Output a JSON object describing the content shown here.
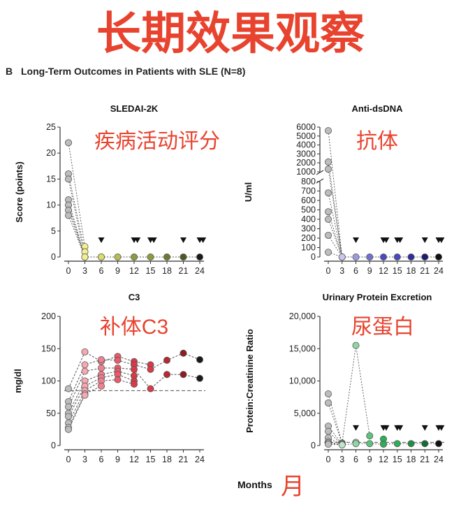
{
  "headline": "长期效果观察",
  "subtitle": "Long-Term Outcomes in Patients with SLE (N=8)",
  "panel_letter": "B",
  "xlabel": "Months",
  "xlabel_cn": "月",
  "chart_data": [
    {
      "type": "scatter",
      "title": "SLEDAI-2K",
      "annotation": "疾病活动评分",
      "ylabel": "Score (points)",
      "ylim": [
        0,
        25
      ],
      "yticks": [
        0,
        5,
        10,
        15,
        20,
        25
      ],
      "xticks": [
        0,
        3,
        6,
        9,
        12,
        15,
        18,
        21,
        24
      ],
      "triangle_markers_x": [
        6,
        12,
        12.6,
        15,
        15.6,
        21,
        24,
        24.6
      ],
      "palette": [
        "#bdbdbd",
        "#f4f08f",
        "#dcdc6a",
        "#b8bd4e",
        "#8f9a3a",
        "#6b7a2c",
        "#4a5a22",
        "#1a1a1a"
      ],
      "points": [
        {
          "x": 0,
          "values": [
            22,
            16,
            15,
            11,
            10,
            10,
            9,
            8
          ]
        },
        {
          "x": 3,
          "values": [
            2,
            1,
            0,
            0
          ]
        },
        {
          "x": 6,
          "values": [
            0,
            0
          ]
        },
        {
          "x": 9,
          "values": [
            0
          ]
        },
        {
          "x": 12,
          "values": [
            0
          ]
        },
        {
          "x": 15,
          "values": [
            0
          ]
        },
        {
          "x": 18,
          "values": [
            0
          ]
        },
        {
          "x": 21,
          "values": [
            0
          ]
        },
        {
          "x": 24,
          "values": [
            0
          ]
        }
      ]
    },
    {
      "type": "scatter",
      "title": "Anti-dsDNA",
      "annotation": "抗体",
      "ylabel": "U/ml",
      "axis_break": true,
      "yticks_upper": [
        1000,
        2000,
        3000,
        4000,
        5000,
        6000
      ],
      "yticks_lower": [
        0,
        100,
        200,
        300,
        400,
        500,
        600,
        700,
        800
      ],
      "xticks": [
        0,
        3,
        6,
        9,
        12,
        15,
        18,
        21,
        24
      ],
      "triangle_markers_x": [
        6,
        12,
        12.6,
        15,
        15.6,
        21,
        24,
        24.6
      ],
      "palette": [
        "#bdbdbd",
        "#c8c8ee",
        "#9a9ae0",
        "#6f6fcf",
        "#4a4abf",
        "#2e2ea0",
        "#1e1e70",
        "#111111"
      ],
      "points": [
        {
          "x": 0,
          "values": [
            5600,
            2100,
            1300,
            680,
            480,
            400,
            230,
            50
          ]
        },
        {
          "x": 3,
          "values": [
            0,
            0,
            0
          ]
        },
        {
          "x": 6,
          "values": [
            0
          ]
        },
        {
          "x": 9,
          "values": [
            0
          ]
        },
        {
          "x": 12,
          "values": [
            0
          ]
        },
        {
          "x": 15,
          "values": [
            0
          ]
        },
        {
          "x": 18,
          "values": [
            0
          ]
        },
        {
          "x": 21,
          "values": [
            0
          ]
        },
        {
          "x": 24,
          "values": [
            0
          ]
        }
      ]
    },
    {
      "type": "line",
      "title": "C3",
      "annotation": "补体C3",
      "ylabel": "mg/dl",
      "ylim": [
        0,
        200
      ],
      "yticks": [
        0,
        50,
        100,
        150,
        200
      ],
      "xticks": [
        0,
        3,
        6,
        9,
        12,
        15,
        18,
        21,
        24
      ],
      "reference_line": 85,
      "palette": [
        "#bdbdbd",
        "#f7a8b2",
        "#f08090",
        "#ea5a6a",
        "#d83a48",
        "#b82830",
        "#8e1c22",
        "#1a1a1a"
      ],
      "series": [
        {
          "name": "",
          "x": [
            0,
            3,
            6,
            9,
            12,
            15
          ],
          "values": [
            88,
            145,
            130,
            138,
            130,
            125
          ]
        },
        {
          "name": "",
          "x": [
            0,
            3,
            6,
            9,
            12,
            15,
            18,
            21,
            24
          ],
          "values": [
            68,
            125,
            133,
            132,
            125,
            118,
            132,
            143,
            133
          ]
        },
        {
          "name": "",
          "x": [
            0,
            3,
            6,
            9,
            12,
            15,
            18,
            21,
            24
          ],
          "values": [
            60,
            115,
            120,
            120,
            118,
            88,
            110,
            110,
            104
          ]
        },
        {
          "name": "",
          "x": [
            0,
            3,
            6,
            9,
            12
          ],
          "values": [
            50,
            100,
            110,
            115,
            108
          ]
        },
        {
          "name": "",
          "x": [
            0,
            3,
            6,
            9,
            12
          ],
          "values": [
            45,
            92,
            105,
            110,
            100
          ]
        },
        {
          "name": "",
          "x": [
            0,
            3,
            6,
            9,
            12
          ],
          "values": [
            35,
            85,
            100,
            102,
            95
          ]
        },
        {
          "name": "",
          "x": [
            0,
            3,
            6
          ],
          "values": [
            28,
            80,
            92
          ]
        },
        {
          "name": "",
          "x": [
            0,
            3
          ],
          "values": [
            25,
            78
          ]
        }
      ]
    },
    {
      "type": "scatter",
      "title": "Urinary Protein Excretion",
      "annotation": "尿蛋白",
      "ylabel": "Protein:Creatinine Ratio",
      "ylim": [
        0,
        20000
      ],
      "yticks": [
        0,
        5000,
        10000,
        15000,
        20000
      ],
      "ytick_labels": [
        "0",
        "5,000",
        "10,000",
        "15,000",
        "20,000"
      ],
      "xticks": [
        0,
        3,
        6,
        9,
        12,
        15,
        18,
        21,
        24
      ],
      "reference_line": 500,
      "triangle_markers_x": [
        6,
        12,
        12.6,
        15,
        15.6,
        21,
        24,
        24.6
      ],
      "palette": [
        "#bdbdbd",
        "#bfe6c9",
        "#8fd6a4",
        "#5cc37d",
        "#2fae5a",
        "#1e8f45",
        "#136e34",
        "#111111"
      ],
      "points": [
        {
          "x": 0,
          "values": [
            8000,
            6600,
            3000,
            2200,
            1200,
            600,
            400,
            200
          ]
        },
        {
          "x": 3,
          "values": [
            400,
            300,
            200,
            100
          ]
        },
        {
          "x": 6,
          "values": [
            15500,
            500,
            300
          ]
        },
        {
          "x": 9,
          "values": [
            1500,
            300
          ]
        },
        {
          "x": 12,
          "values": [
            1000,
            200
          ]
        },
        {
          "x": 15,
          "values": [
            300
          ]
        },
        {
          "x": 18,
          "values": [
            300
          ]
        },
        {
          "x": 21,
          "values": [
            300
          ]
        },
        {
          "x": 24,
          "values": [
            300
          ]
        }
      ]
    }
  ]
}
